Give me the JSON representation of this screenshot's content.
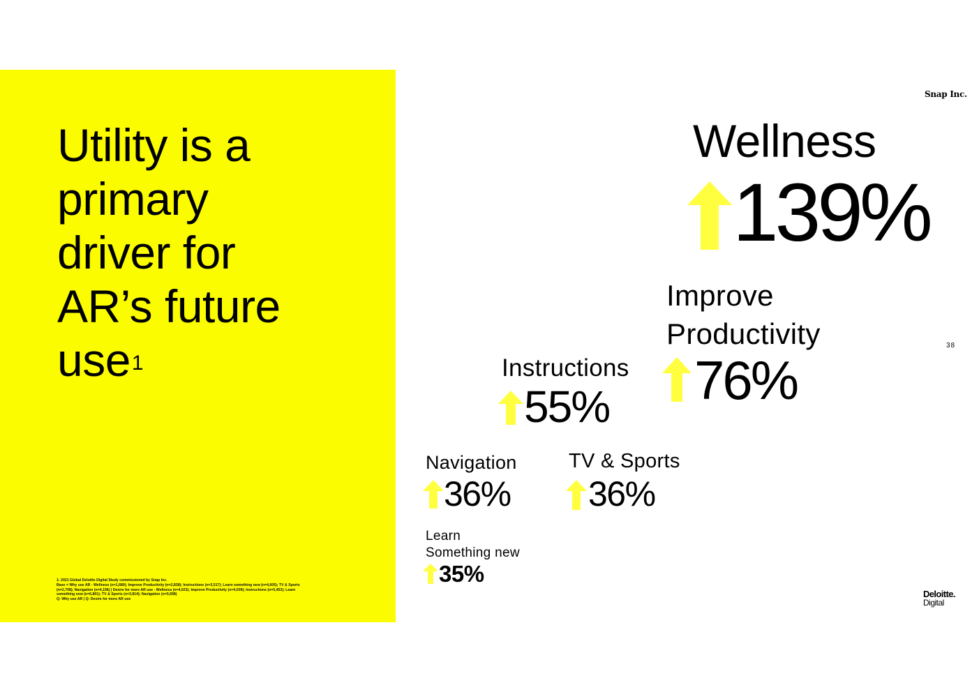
{
  "headline": {
    "lines": [
      "Utility is a",
      "primary",
      "driver for",
      "AR’s future",
      "use"
    ],
    "superscript": "1"
  },
  "footnote": {
    "lines": [
      "1: 2021 Global Deloitte Digital Study commissioned by Snap Inc.",
      "Base = Why use AR - Wellness (n=1,680); Improve Productivity (n=2,838); Instructions (n=3,517); Learn something new (n=4,605); TV & Sports",
      "(n=2,708); Navigation (n=4,196) | Desire for more AR use - Wellness (n=4,023); Improve Productivity (n=4,039); Instructions (n=5,453); Learn",
      "something new (n=6,801); TV & Sports (n=3,814); Navigation (n=5,698)",
      "Q: Why use AR | Q: Desire for more AR use"
    ]
  },
  "brand": {
    "snap": "Snap Inc.",
    "deloitte_line1": "Deloitte.",
    "deloitte_line2": "Digital"
  },
  "page_number": "38",
  "colors": {
    "accent_yellow": "#fcfc00",
    "arrow_yellow": "#ffff40",
    "text": "#000000"
  },
  "stats": {
    "wellness": {
      "label": "Wellness",
      "value": "139%"
    },
    "productivity": {
      "label_line1": "Improve",
      "label_line2": "Productivity",
      "value": "76%"
    },
    "instructions": {
      "label": "Instructions",
      "value": "55%"
    },
    "navigation": {
      "label": "Navigation",
      "value": "36%"
    },
    "tv_sports": {
      "label": "TV & Sports",
      "value": "36%"
    },
    "learn": {
      "label_line1": "Learn",
      "label_line2": "Something new",
      "value": "35%"
    }
  }
}
